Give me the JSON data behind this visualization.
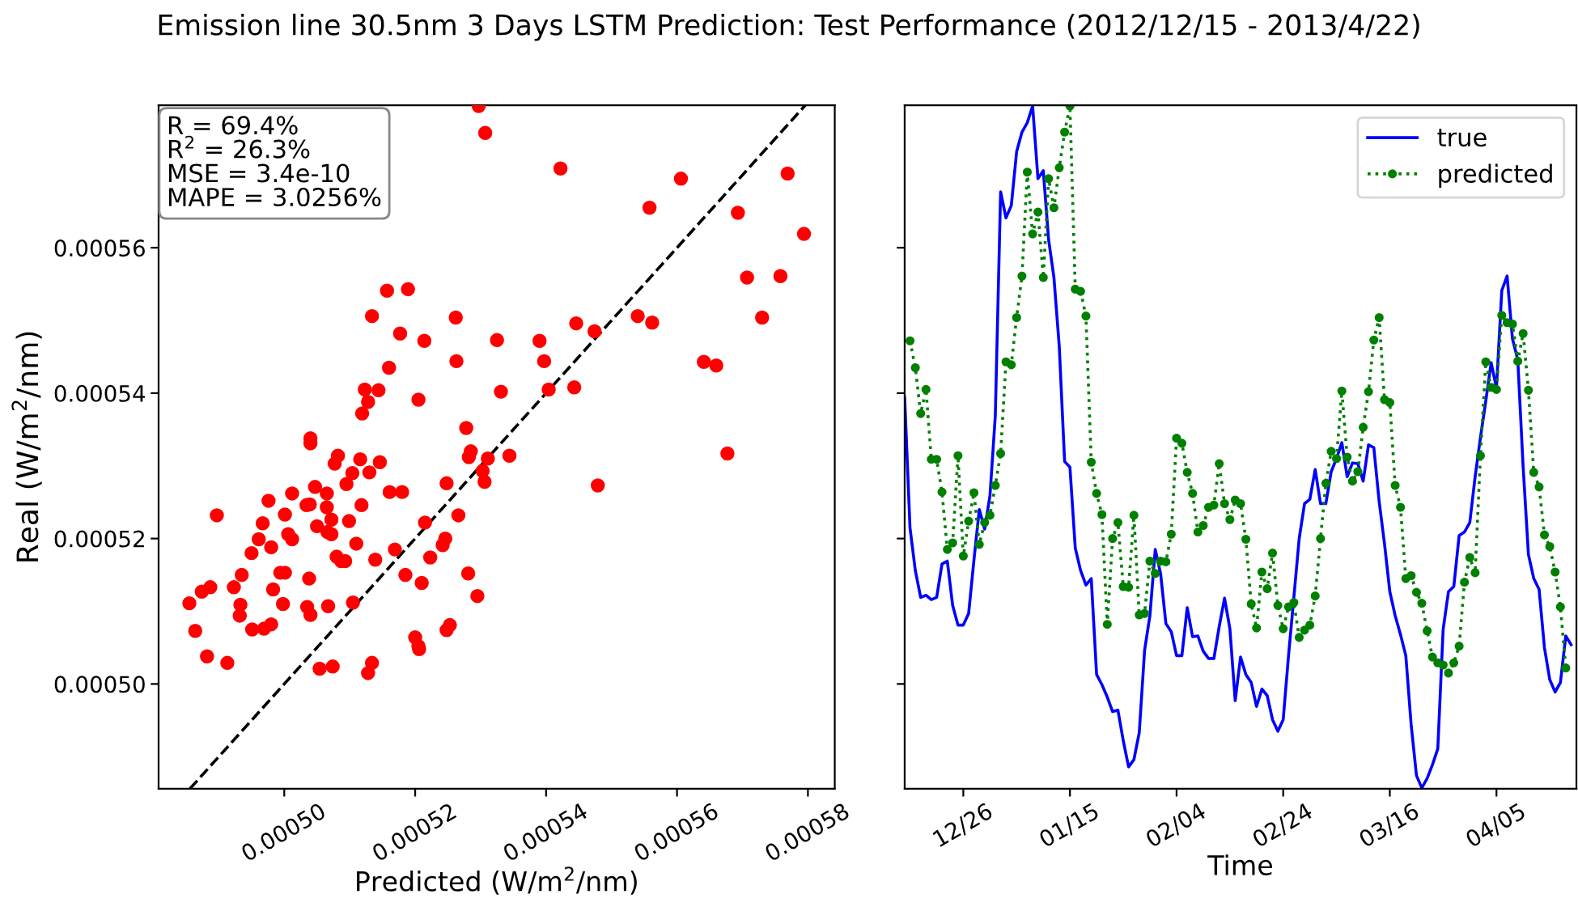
{
  "chart_data": [
    {
      "type": "scatter",
      "title": "Emission line 30.5nm 3 Days LSTM Prediction: Test Performance (2012/12/15 - 2013/4/22)",
      "xlabel": "Predicted (W/m$^{2}$/nm)",
      "ylabel": "Real (W/m$^{2}$/nm)",
      "annotations": [
        "R = 69.4%\nR$^{2}$ = 26.3%\nMSE = 3.4e-10\nMAPE = 3.0256%"
      ],
      "xlim": [
        0.0004808,
        0.0005841
      ],
      "ylim": [
        0.0004856,
        0.0005796
      ],
      "xticks": [
        {
          "value": 0.0005,
          "label": "0.00050"
        },
        {
          "value": 0.00052,
          "label": "0.00052"
        },
        {
          "value": 0.00054,
          "label": "0.00054"
        },
        {
          "value": 0.00056,
          "label": "0.00056"
        },
        {
          "value": 0.00058,
          "label": "0.00058"
        }
      ],
      "yticks": [
        {
          "value": 0.0005,
          "label": "0.00050"
        },
        {
          "value": 0.00052,
          "label": "0.00052"
        },
        {
          "value": 0.00054,
          "label": "0.00054"
        },
        {
          "value": 0.00056,
          "label": "0.00056"
        }
      ],
      "grid": false,
      "series": [
        {
          "type": "scatter",
          "color": "#ff0000",
          "marker": "circle",
          "x": [
            0.0005297,
            0.0005307,
            0.0005422,
            0.0005606,
            0.0005769,
            0.0005558,
            0.0005693,
            0.0005794,
            0.0005707,
            0.0005758,
            0.0005157,
            0.0005189,
            0.0005134,
            0.0005262,
            0.0005177,
            0.0005214,
            0.0005325,
            0.000539,
            0.0005446,
            0.0005474,
            0.000554,
            0.0005562,
            0.000573,
            0.000516,
            0.0005263,
            0.0005397,
            0.0005641,
            0.000566,
            0.0005123,
            0.0005144,
            0.0005128,
            0.0005205,
            0.0005331,
            0.0005404,
            0.0005443,
            0.0005119,
            0.0005278,
            0.000504,
            0.000504,
            0.0005082,
            0.0005116,
            0.0005344,
            0.0005677,
            0.0005285,
            0.0005282,
            0.0005311,
            0.0005077,
            0.0005146,
            0.0005303,
            0.0005104,
            0.000513,
            0.0005306,
            0.0005248,
            0.0005479,
            0.0005095,
            0.0005047,
            0.0005012,
            0.0005065,
            0.0005161,
            0.000518,
            0.0004976,
            0.0005034,
            0.0005039,
            0.0005065,
            0.0005118,
            0.0004897,
            0.0005001,
            0.0005266,
            0.0005072,
            0.0005099,
            0.0004967,
            0.0005215,
            0.000505,
            0.0005006,
            0.0005012,
            0.0004961,
            0.0005066,
            0.0005072,
            0.000498,
            0.000511,
            0.0005246,
            0.0005242,
            0.000495,
            0.0005169,
            0.0005223,
            0.000508,
            0.0005087,
            0.0005093,
            0.0005139,
            0.0004994,
            0.0005001,
            0.0004935,
            0.0005038,
            0.0005185,
            0.0005281,
            0.000521,
            0.0004874,
            0.0004887,
            0.0004923,
            0.0004983,
            0.0004855,
            0.0004933,
            0.0004998,
            0.0005035,
            0.000504,
            0.0005067,
            0.0005105,
            0.0005295,
            0.0004932,
            0.0004864,
            0.0004951,
            0.0004969,
            0.000498,
            0.0005248,
            0.0005253,
            0.00052,
            0.0005205,
            0.0005206,
            0.0004882,
            0.0004913,
            0.0005054,
            0.0005074,
            0.0005134,
            0.0005128
          ],
          "values": [
            0.0005795,
            0.0005758,
            0.0005709,
            0.0005695,
            0.0005702,
            0.0005655,
            0.0005648,
            0.0005619,
            0.0005559,
            0.0005561,
            0.0005541,
            0.0005543,
            0.0005506,
            0.0005504,
            0.0005482,
            0.0005472,
            0.0005473,
            0.0005472,
            0.0005496,
            0.0005485,
            0.0005506,
            0.0005497,
            0.0005504,
            0.0005435,
            0.0005444,
            0.0005444,
            0.0005443,
            0.0005438,
            0.0005405,
            0.0005404,
            0.0005388,
            0.0005391,
            0.0005402,
            0.0005405,
            0.0005408,
            0.0005372,
            0.0005352,
            0.0005338,
            0.0005331,
            0.0005314,
            0.0005309,
            0.0005314,
            0.0005317,
            0.000532,
            0.0005312,
            0.000531,
            0.0005303,
            0.0005305,
            0.0005293,
            0.000529,
            0.0005291,
            0.0005278,
            0.0005276,
            0.0005273,
            0.0005275,
            0.0005271,
            0.0005262,
            0.0005262,
            0.0005264,
            0.0005264,
            0.0005252,
            0.0005246,
            0.0005247,
            0.0005243,
            0.0005246,
            0.0005232,
            0.0005233,
            0.0005232,
            0.0005226,
            0.0005224,
            0.0005221,
            0.0005222,
            0.0005217,
            0.0005206,
            0.0005199,
            0.0005199,
            0.0005209,
            0.0005206,
            0.0005188,
            0.0005193,
            0.00052,
            0.0005191,
            0.000518,
            0.0005185,
            0.0005174,
            0.0005175,
            0.0005169,
            0.0005169,
            0.0005171,
            0.0005153,
            0.0005153,
            0.000515,
            0.0005145,
            0.000515,
            0.0005152,
            0.0005139,
            0.0005127,
            0.0005133,
            0.0005133,
            0.000513,
            0.0005111,
            0.0005109,
            0.000511,
            0.0005106,
            0.0005095,
            0.0005107,
            0.0005112,
            0.0005121,
            0.0005094,
            0.0005073,
            0.0005075,
            0.0005076,
            0.0005082,
            0.0005074,
            0.0005081,
            0.0005064,
            0.0005052,
            0.0005048,
            0.0005038,
            0.0005029,
            0.0005021,
            0.0005024,
            0.0005029,
            0.0005015
          ]
        },
        {
          "type": "line",
          "color": "#000000",
          "line_style": "dashed",
          "marker": "none",
          "x": [
            0.0004856,
            0.0005796
          ],
          "values": [
            0.0004856,
            0.0005796
          ]
        }
      ]
    },
    {
      "type": "line",
      "xlabel": "Time",
      "tick_labels": "x",
      "legend": "top right",
      "grid": false,
      "xlim": [
        "2012-12-15",
        "2013-04-20"
      ],
      "ylim": [
        0.0004856,
        0.0005796
      ],
      "xticks": [
        {
          "value": "2012-12-26",
          "label": "12/26"
        },
        {
          "value": "2013-01-15",
          "label": "01/15"
        },
        {
          "value": "2013-02-04",
          "label": "02/04"
        },
        {
          "value": "2013-02-24",
          "label": "02/24"
        },
        {
          "value": "2013-03-16",
          "label": "03/16"
        },
        {
          "value": "2013-04-05",
          "label": "04/05"
        }
      ],
      "yticks": [
        {
          "value": 0.0005,
          "label": null
        },
        {
          "value": 0.00052,
          "label": null
        },
        {
          "value": 0.00054,
          "label": null
        },
        {
          "value": 0.00056,
          "label": null
        }
      ],
      "x": [
        "2012-12-15",
        "2012-12-16",
        "2012-12-17",
        "2012-12-18",
        "2012-12-19",
        "2012-12-20",
        "2012-12-21",
        "2012-12-22",
        "2012-12-23",
        "2012-12-24",
        "2012-12-25",
        "2012-12-26",
        "2012-12-27",
        "2012-12-28",
        "2012-12-29",
        "2012-12-30",
        "2012-12-31",
        "2013-01-01",
        "2013-01-02",
        "2013-01-03",
        "2013-01-04",
        "2013-01-05",
        "2013-01-06",
        "2013-01-07",
        "2013-01-08",
        "2013-01-09",
        "2013-01-10",
        "2013-01-11",
        "2013-01-12",
        "2013-01-13",
        "2013-01-14",
        "2013-01-15",
        "2013-01-16",
        "2013-01-17",
        "2013-01-18",
        "2013-01-19",
        "2013-01-20",
        "2013-01-21",
        "2013-01-22",
        "2013-01-23",
        "2013-01-24",
        "2013-01-25",
        "2013-01-26",
        "2013-01-27",
        "2013-01-28",
        "2013-01-29",
        "2013-01-30",
        "2013-01-31",
        "2013-02-01",
        "2013-02-02",
        "2013-02-03",
        "2013-02-04",
        "2013-02-05",
        "2013-02-06",
        "2013-02-07",
        "2013-02-08",
        "2013-02-09",
        "2013-02-10",
        "2013-02-11",
        "2013-02-12",
        "2013-02-13",
        "2013-02-14",
        "2013-02-15",
        "2013-02-16",
        "2013-02-17",
        "2013-02-18",
        "2013-02-19",
        "2013-02-20",
        "2013-02-21",
        "2013-02-22",
        "2013-02-23",
        "2013-02-24",
        "2013-02-25",
        "2013-02-26",
        "2013-02-27",
        "2013-02-28",
        "2013-03-01",
        "2013-03-02",
        "2013-03-03",
        "2013-03-04",
        "2013-03-05",
        "2013-03-06",
        "2013-03-07",
        "2013-03-08",
        "2013-03-09",
        "2013-03-10",
        "2013-03-11",
        "2013-03-12",
        "2013-03-13",
        "2013-03-14",
        "2013-03-15",
        "2013-03-16",
        "2013-03-17",
        "2013-03-18",
        "2013-03-19",
        "2013-03-20",
        "2013-03-21",
        "2013-03-22",
        "2013-03-23",
        "2013-03-24",
        "2013-03-25",
        "2013-03-26",
        "2013-03-27",
        "2013-03-28",
        "2013-03-29",
        "2013-03-30",
        "2013-03-31",
        "2013-04-01",
        "2013-04-02",
        "2013-04-03",
        "2013-04-04",
        "2013-04-05",
        "2013-04-06",
        "2013-04-07",
        "2013-04-08",
        "2013-04-09",
        "2013-04-10",
        "2013-04-11",
        "2013-04-12",
        "2013-04-13",
        "2013-04-14",
        "2013-04-15",
        "2013-04-16",
        "2013-04-17",
        "2013-04-18",
        "2013-04-19"
      ],
      "series": [
        {
          "name": "true",
          "color": "#0000ff",
          "line_style": "solid",
          "marker": "none",
          "values": [
            0.0005394,
            0.0005215,
            0.0005156,
            0.0005119,
            0.0005122,
            0.0005116,
            0.0005119,
            0.0005165,
            0.0005169,
            0.0005108,
            0.0005081,
            0.0005081,
            0.0005097,
            0.0005171,
            0.000524,
            0.0005213,
            0.0005259,
            0.0005369,
            0.0005677,
            0.0005641,
            0.0005658,
            0.0005732,
            0.0005759,
            0.0005772,
            0.0005795,
            0.0005695,
            0.0005706,
            0.0005611,
            0.0005559,
            0.0005464,
            0.0005306,
            0.0005298,
            0.0005187,
            0.0005156,
            0.0005136,
            0.0005145,
            0.0005013,
            0.0004999,
            0.0004982,
            0.0004962,
            0.0004964,
            0.0004922,
            0.0004886,
            0.0004896,
            0.0004933,
            0.0005046,
            0.0005094,
            0.0005185,
            0.0005152,
            0.0005083,
            0.0005072,
            0.0005039,
            0.0005039,
            0.0005105,
            0.0005065,
            0.0005066,
            0.0005045,
            0.0005035,
            0.0005035,
            0.0005079,
            0.0005118,
            0.0005076,
            0.0004977,
            0.0005037,
            0.0005013,
            0.0005002,
            0.0004969,
            0.0004993,
            0.0004984,
            0.0004951,
            0.0004935,
            0.0004951,
            0.0005039,
            0.0005119,
            0.00052,
            0.0005248,
            0.0005254,
            0.0005295,
            0.0005248,
            0.0005248,
            0.0005292,
            0.000531,
            0.0005332,
            0.0005285,
            0.0005304,
            0.0005303,
            0.0005279,
            0.0005329,
            0.0005325,
            0.0005251,
            0.0005193,
            0.0005127,
            0.0005094,
            0.0005068,
            0.0005039,
            0.0004944,
            0.0004874,
            0.0004857,
            0.000487,
            0.0004889,
            0.0004911,
            0.0005075,
            0.0005127,
            0.0005134,
            0.0005204,
            0.0005209,
            0.0005222,
            0.0005285,
            0.0005339,
            0.0005389,
            0.0005442,
            0.0005407,
            0.0005541,
            0.0005561,
            0.0005475,
            0.0005446,
            0.0005299,
            0.0005178,
            0.0005145,
            0.000513,
            0.000505,
            0.0005006,
            0.0004989,
            0.0005002,
            0.0005066,
            0.0005054
          ]
        },
        {
          "name": "predicted",
          "color": "#008000",
          "line_style": "dotted",
          "marker": "circle",
          "values": [
            null,
            0.0005472,
            0.0005435,
            0.0005372,
            0.0005405,
            0.0005309,
            0.0005309,
            0.0005264,
            0.0005185,
            0.0005194,
            0.0005314,
            0.0005176,
            0.0005224,
            0.0005263,
            0.0005192,
            0.0005222,
            0.0005232,
            0.0005273,
            0.0005317,
            0.0005443,
            0.0005439,
            0.0005504,
            0.0005561,
            0.0005704,
            0.0005619,
            0.0005649,
            0.0005559,
            0.0005695,
            0.0005655,
            0.000571,
            0.0005759,
            0.0005795,
            0.0005543,
            0.000554,
            0.0005506,
            0.0005305,
            0.0005262,
            0.0005233,
            0.0005082,
            0.00052,
            0.0005222,
            0.0005134,
            0.0005133,
            0.0005232,
            0.0005095,
            0.0005097,
            0.0005169,
            0.0005152,
            0.0005169,
            0.0005168,
            0.0005206,
            0.0005338,
            0.0005331,
            0.0005291,
            0.0005262,
            0.0005209,
            0.0005218,
            0.0005243,
            0.0005246,
            0.0005303,
            0.0005248,
            0.0005226,
            0.0005253,
            0.0005248,
            0.0005199,
            0.000511,
            0.0005077,
            0.0005154,
            0.0005131,
            0.000518,
            0.0005108,
            0.0005076,
            0.0005106,
            0.0005112,
            0.0005064,
            0.0005074,
            0.0005081,
            0.0005121,
            0.00052,
            0.0005276,
            0.000532,
            0.000531,
            0.0005403,
            0.0005312,
            0.0005279,
            0.0005292,
            0.0005353,
            0.0005402,
            0.0005473,
            0.0005504,
            0.0005391,
            0.0005387,
            0.0005273,
            0.0005243,
            0.0005145,
            0.0005149,
            0.0005126,
            0.0005111,
            0.0005073,
            0.0005037,
            0.0005029,
            0.0005026,
            0.0005015,
            0.0005029,
            0.0005052,
            0.000514,
            0.0005174,
            0.0005153,
            0.0005314,
            0.0005443,
            0.0005408,
            0.0005405,
            0.0005507,
            0.0005497,
            0.0005495,
            0.0005444,
            0.0005482,
            0.0005404,
            0.0005291,
            0.0005271,
            0.0005205,
            0.0005189,
            0.0005154,
            0.0005106,
            0.0005022,
            null
          ]
        }
      ]
    }
  ]
}
